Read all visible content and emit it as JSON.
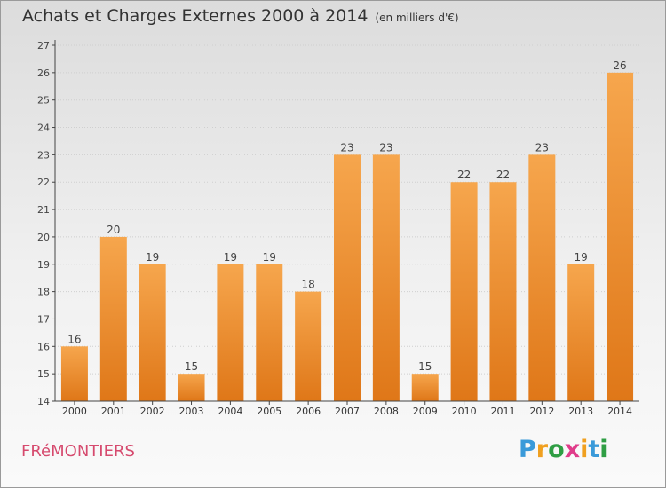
{
  "title": "Achats et Charges Externes 2000 à 2014",
  "unit_note": "(en milliers d'€)",
  "commune": "FRéMONTIERS",
  "logo": {
    "letters": [
      "P",
      "r",
      "o",
      "x",
      "i",
      "t",
      "i"
    ],
    "colors": [
      "#3a9ad9",
      "#f0a020",
      "#2f9e44",
      "#e03c8a",
      "#f0a020",
      "#3a9ad9",
      "#2f9e44"
    ]
  },
  "colors": {
    "bar_top": "#f6a64d",
    "bar_bottom": "#df7718",
    "grid": "#cfcfcf",
    "axis": "#444444"
  },
  "chart_data": {
    "type": "bar",
    "categories": [
      "2000",
      "2001",
      "2002",
      "2003",
      "2004",
      "2005",
      "2006",
      "2007",
      "2008",
      "2009",
      "2010",
      "2011",
      "2012",
      "2013",
      "2014"
    ],
    "values": [
      16,
      20,
      19,
      15,
      19,
      19,
      18,
      23,
      23,
      15,
      22,
      22,
      23,
      19,
      26
    ],
    "ylim": [
      14,
      27
    ],
    "yticks": [
      14,
      15,
      16,
      17,
      18,
      19,
      20,
      21,
      22,
      23,
      24,
      25,
      26,
      27
    ],
    "grid": true,
    "xlabel": "",
    "ylabel": ""
  }
}
